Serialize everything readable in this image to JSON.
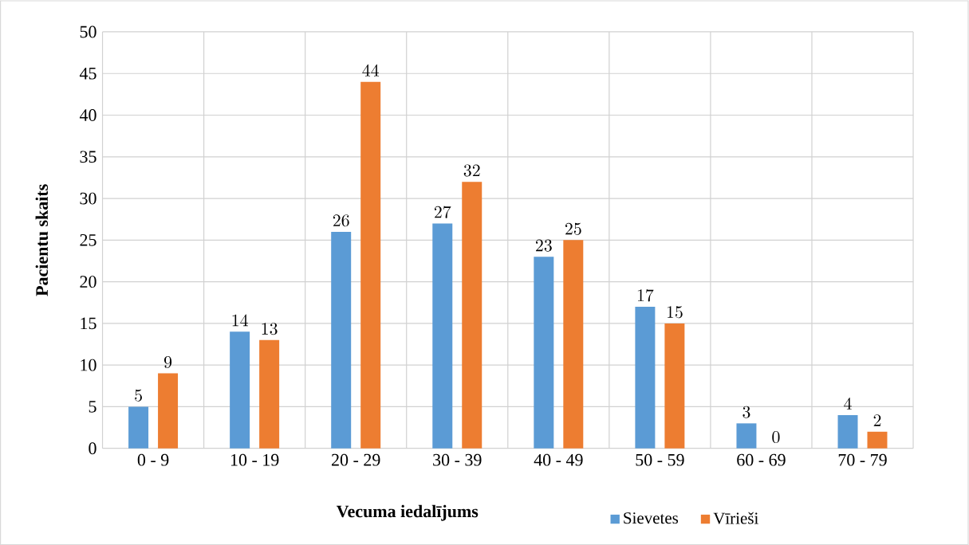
{
  "chart_data": {
    "type": "bar",
    "xlabel": "Vecuma iedalījums",
    "ylabel": "Pacientu skaits",
    "categories": [
      "0 - 9",
      "10 - 19",
      "20 - 29",
      "30 - 39",
      "40 - 49",
      "50 - 59",
      "60 - 69",
      "70 - 79"
    ],
    "series": [
      {
        "name": "Sievetes",
        "color": "#5b9bd5",
        "values": [
          5,
          14,
          26,
          27,
          23,
          17,
          3,
          4
        ]
      },
      {
        "name": "Vīrieši",
        "color": "#ed7d31",
        "values": [
          9,
          13,
          44,
          32,
          25,
          15,
          0,
          2
        ]
      }
    ],
    "ylim": [
      0,
      50
    ],
    "yticks": [
      0,
      5,
      10,
      15,
      20,
      25,
      30,
      35,
      40,
      45,
      50
    ],
    "grid": true,
    "legend": "bottom",
    "data_labels": true
  }
}
